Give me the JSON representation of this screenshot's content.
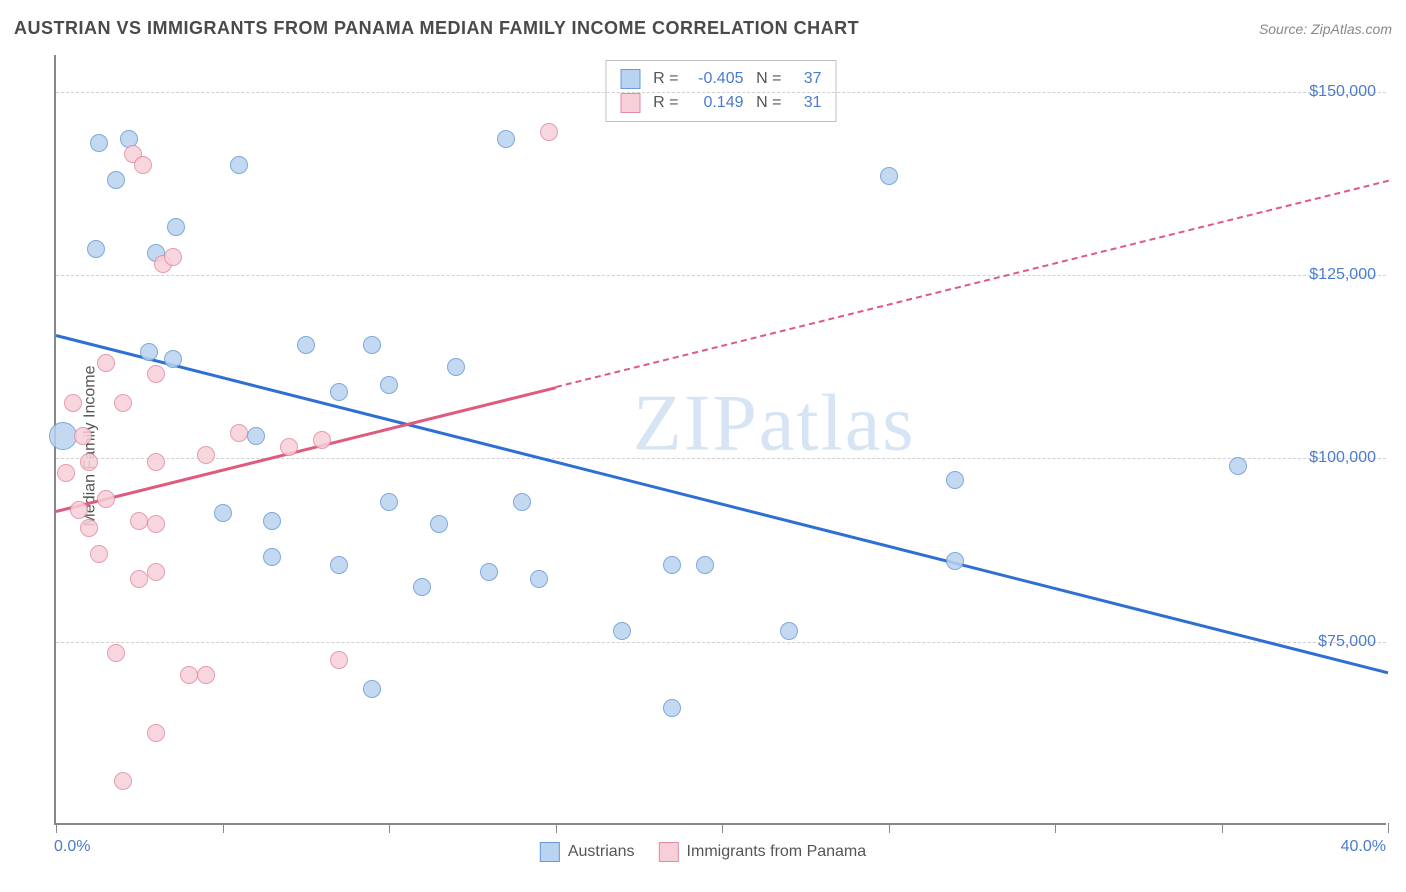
{
  "title": "AUSTRIAN VS IMMIGRANTS FROM PANAMA MEDIAN FAMILY INCOME CORRELATION CHART",
  "source": "Source: ZipAtlas.com",
  "watermark": "ZIPatlas",
  "chart": {
    "type": "scatter",
    "ylabel": "Median Family Income",
    "xlim": [
      0,
      40
    ],
    "ylim": [
      50000,
      155000
    ],
    "x_min_label": "0.0%",
    "x_max_label": "40.0%",
    "y_ticks": [
      75000,
      100000,
      125000,
      150000
    ],
    "y_tick_labels": [
      "$75,000",
      "$100,000",
      "$125,000",
      "$150,000"
    ],
    "x_tick_positions": [
      0,
      5,
      10,
      15,
      20,
      25,
      30,
      35,
      40
    ],
    "grid_color": "#d0d0d0",
    "background_color": "#ffffff",
    "series": [
      {
        "name": "Austrians",
        "label": "Austrians",
        "fill_color": "#b9d3f0",
        "stroke_color": "#6a9ad4",
        "marker_radius": 9,
        "R": "-0.405",
        "N": "37",
        "trend": {
          "x1": 0,
          "y1": 117000,
          "x2": 40,
          "y2": 71000,
          "color": "#2d6fd2",
          "width": 3,
          "dash": false
        },
        "points": [
          {
            "x": 1.3,
            "y": 143000
          },
          {
            "x": 1.8,
            "y": 138000
          },
          {
            "x": 2.2,
            "y": 143500
          },
          {
            "x": 5.5,
            "y": 140000
          },
          {
            "x": 25.0,
            "y": 138500
          },
          {
            "x": 1.2,
            "y": 128500
          },
          {
            "x": 3.0,
            "y": 128000
          },
          {
            "x": 3.6,
            "y": 131500
          },
          {
            "x": 2.8,
            "y": 114500
          },
          {
            "x": 3.5,
            "y": 113500
          },
          {
            "x": 7.5,
            "y": 115500
          },
          {
            "x": 9.5,
            "y": 115500
          },
          {
            "x": 8.5,
            "y": 109000
          },
          {
            "x": 10.0,
            "y": 110000
          },
          {
            "x": 12.0,
            "y": 112500
          },
          {
            "x": 13.5,
            "y": 143500
          },
          {
            "x": 0.2,
            "y": 103000,
            "r": 14
          },
          {
            "x": 6.0,
            "y": 103000
          },
          {
            "x": 35.5,
            "y": 99000
          },
          {
            "x": 5.0,
            "y": 92500
          },
          {
            "x": 6.5,
            "y": 91500
          },
          {
            "x": 10.0,
            "y": 94000
          },
          {
            "x": 11.5,
            "y": 91000
          },
          {
            "x": 14.0,
            "y": 94000
          },
          {
            "x": 27.0,
            "y": 97000
          },
          {
            "x": 6.5,
            "y": 86500
          },
          {
            "x": 8.5,
            "y": 85500
          },
          {
            "x": 11.0,
            "y": 82500
          },
          {
            "x": 13.0,
            "y": 84500
          },
          {
            "x": 14.5,
            "y": 83500
          },
          {
            "x": 18.5,
            "y": 85500
          },
          {
            "x": 19.5,
            "y": 85500
          },
          {
            "x": 27.0,
            "y": 86000
          },
          {
            "x": 17.0,
            "y": 76500
          },
          {
            "x": 22.0,
            "y": 76500
          },
          {
            "x": 9.5,
            "y": 68500
          },
          {
            "x": 18.5,
            "y": 66000
          }
        ]
      },
      {
        "name": "Immigrants from Panama",
        "label": "Immigrants from Panama",
        "fill_color": "#f7cfd9",
        "stroke_color": "#e28ba2",
        "marker_radius": 9,
        "R": "0.149",
        "N": "31",
        "trend": {
          "x1": 0,
          "y1": 93000,
          "x2": 40,
          "y2": 138000,
          "color": "#e05a7d",
          "width": 3,
          "dash_from_x": 15
        },
        "points": [
          {
            "x": 2.3,
            "y": 141500
          },
          {
            "x": 2.6,
            "y": 140000
          },
          {
            "x": 14.8,
            "y": 144500
          },
          {
            "x": 3.2,
            "y": 126500
          },
          {
            "x": 3.5,
            "y": 127500
          },
          {
            "x": 0.5,
            "y": 107500
          },
          {
            "x": 0.8,
            "y": 103000
          },
          {
            "x": 1.0,
            "y": 99500
          },
          {
            "x": 1.5,
            "y": 113000
          },
          {
            "x": 2.0,
            "y": 107500
          },
          {
            "x": 3.0,
            "y": 111500
          },
          {
            "x": 3.0,
            "y": 99500
          },
          {
            "x": 4.5,
            "y": 100500
          },
          {
            "x": 5.5,
            "y": 103500
          },
          {
            "x": 7.0,
            "y": 101500
          },
          {
            "x": 8.0,
            "y": 102500
          },
          {
            "x": 0.3,
            "y": 98000
          },
          {
            "x": 0.7,
            "y": 93000
          },
          {
            "x": 1.0,
            "y": 90500
          },
          {
            "x": 1.5,
            "y": 94500
          },
          {
            "x": 2.5,
            "y": 91500
          },
          {
            "x": 3.0,
            "y": 91000
          },
          {
            "x": 1.3,
            "y": 87000
          },
          {
            "x": 2.5,
            "y": 83500
          },
          {
            "x": 3.0,
            "y": 84500
          },
          {
            "x": 1.8,
            "y": 73500
          },
          {
            "x": 4.0,
            "y": 70500
          },
          {
            "x": 4.5,
            "y": 70500
          },
          {
            "x": 8.5,
            "y": 72500
          },
          {
            "x": 3.0,
            "y": 62500
          },
          {
            "x": 2.0,
            "y": 56000
          }
        ]
      }
    ]
  }
}
